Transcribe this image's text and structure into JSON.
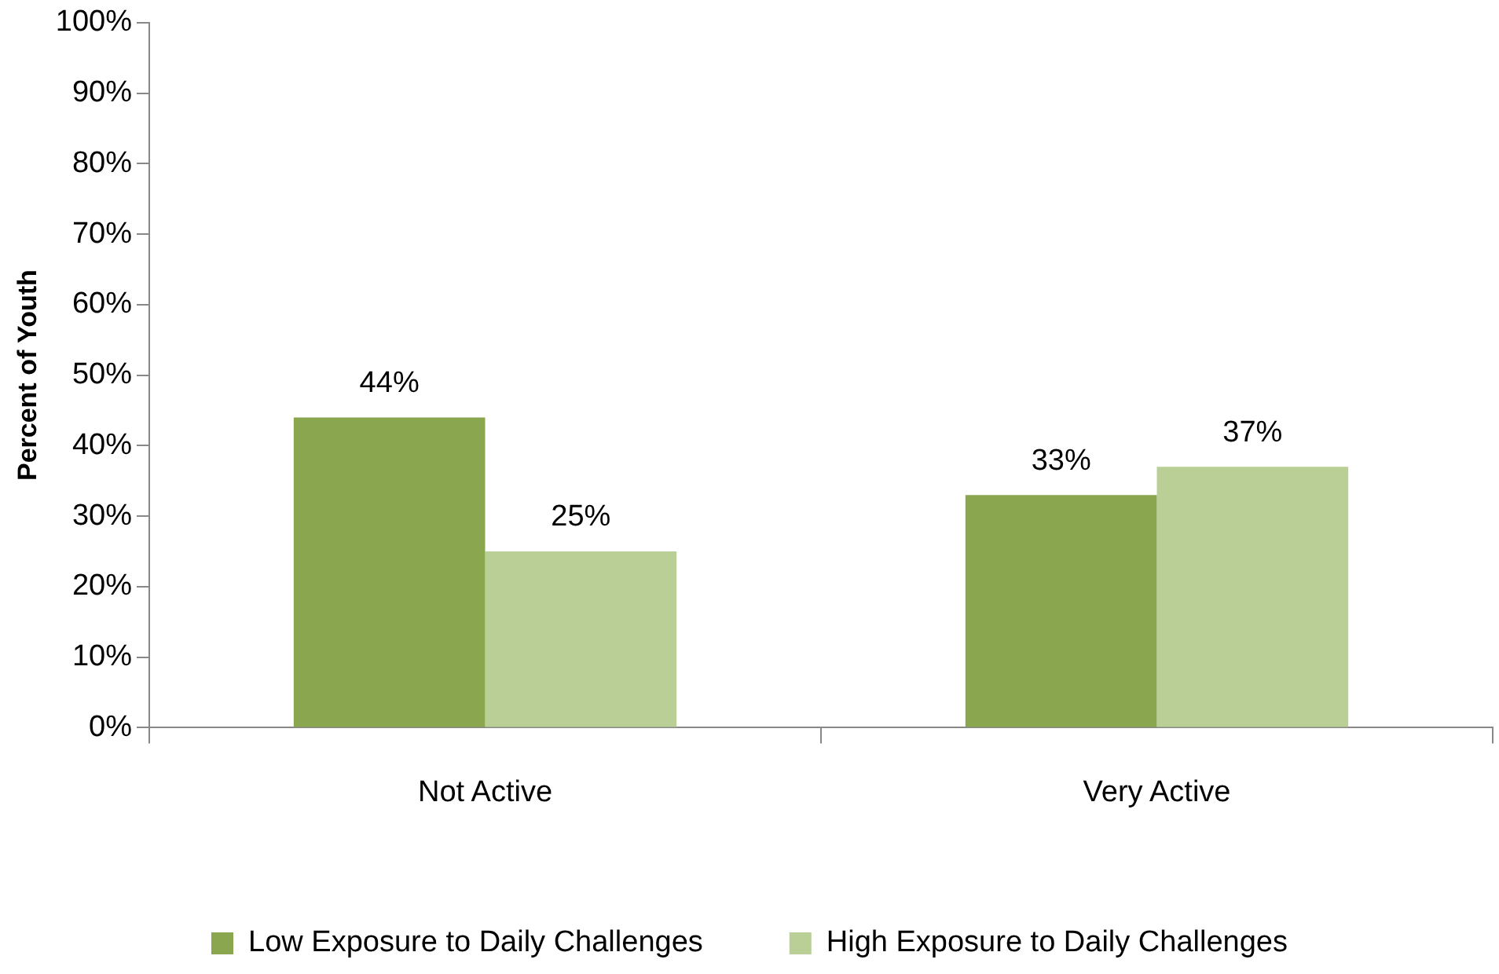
{
  "chart_data": {
    "type": "bar",
    "ylabel": "Percent of Youth",
    "categories": [
      "Not Active",
      "Very Active"
    ],
    "series": [
      {
        "name": "Low Exposure to Daily Challenges",
        "color": "#8aa74f",
        "values": [
          44,
          33
        ],
        "value_labels": [
          "44%",
          "33%"
        ]
      },
      {
        "name": "High Exposure to Daily Challenges",
        "color": "#b9cf95",
        "values": [
          25,
          37
        ],
        "value_labels": [
          "25%",
          "37%"
        ]
      }
    ],
    "ylim": [
      0,
      100
    ],
    "yticks": [
      {
        "value": 0,
        "label": "0%"
      },
      {
        "value": 10,
        "label": "10%"
      },
      {
        "value": 20,
        "label": "20%"
      },
      {
        "value": 30,
        "label": "30%"
      },
      {
        "value": 40,
        "label": "40%"
      },
      {
        "value": 50,
        "label": "50%"
      },
      {
        "value": 60,
        "label": "60%"
      },
      {
        "value": 70,
        "label": "70%"
      },
      {
        "value": 80,
        "label": "80%"
      },
      {
        "value": 90,
        "label": "90%"
      },
      {
        "value": 100,
        "label": "100%"
      }
    ],
    "grid": false,
    "legend": "bottom"
  }
}
